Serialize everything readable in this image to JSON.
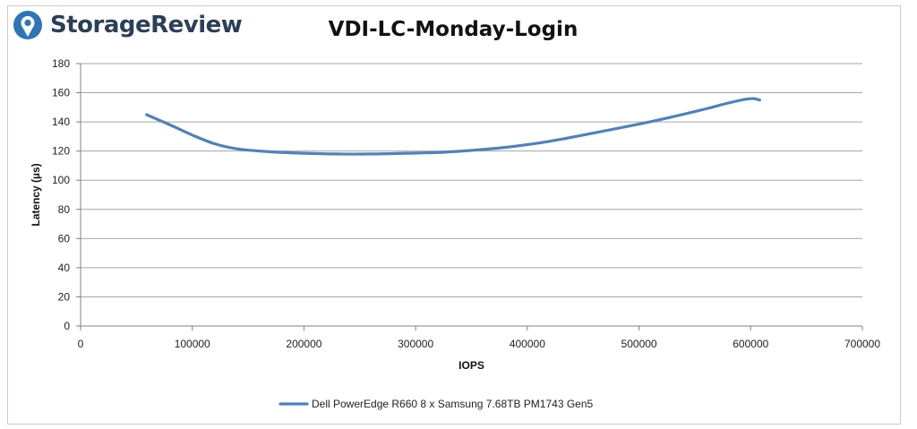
{
  "brand": {
    "name": "StorageReview",
    "logo_icon": "storagereview-logo-icon"
  },
  "colors": {
    "series": "#4f81bd",
    "grid": "#a6a6a6",
    "axis": "#808080",
    "brand": "#2b3f57",
    "brand_accent": "#2e75b6"
  },
  "chart_data": {
    "type": "line",
    "title": "VDI-LC-Monday-Login",
    "xlabel": "IOPS",
    "ylabel": "Latency (µs)",
    "xlim": [
      0,
      700000
    ],
    "ylim": [
      0,
      180
    ],
    "x_ticks": [
      0,
      100000,
      200000,
      300000,
      400000,
      500000,
      600000,
      700000
    ],
    "y_ticks": [
      0,
      20,
      40,
      60,
      80,
      100,
      120,
      140,
      160,
      180
    ],
    "grid": true,
    "legend_position": "bottom",
    "series": [
      {
        "name": "Dell PowerEdge R660 8 x Samsung 7.68TB PM1743 Gen5",
        "color": "#4f81bd",
        "x": [
          59000,
          80000,
          100000,
          120000,
          140000,
          170000,
          200000,
          230000,
          260000,
          290000,
          320000,
          350000,
          380000,
          410000,
          440000,
          470000,
          500000,
          530000,
          560000,
          580000,
          595000,
          603000,
          608000
        ],
        "y": [
          145,
          138,
          131,
          125,
          121.5,
          119.5,
          118.5,
          118,
          118,
          118.5,
          119,
          120.5,
          122.5,
          125.5,
          129.5,
          134,
          138.5,
          143.5,
          149,
          153,
          155.5,
          156,
          155
        ]
      }
    ]
  }
}
